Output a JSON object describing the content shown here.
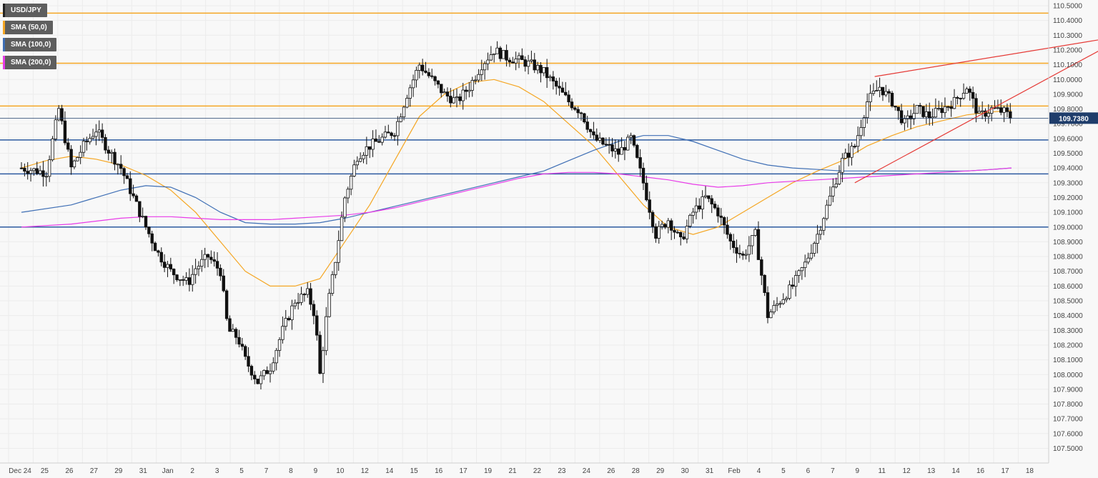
{
  "chart_data": {
    "type": "candlestick",
    "symbol": "USD/JPY",
    "legend": [
      {
        "label": "USD/JPY",
        "color": "#222222"
      },
      {
        "label": "SMA (50,0)",
        "color": "#f5a623"
      },
      {
        "label": "SMA (100,0)",
        "color": "#3f6fb5"
      },
      {
        "label": "SMA (200,0)",
        "color": "#e83be8"
      }
    ],
    "ylim": [
      107.45,
      110.55
    ],
    "y_ticks": [
      "110.5000",
      "110.4000",
      "110.3000",
      "110.2000",
      "110.1000",
      "110.0000",
      "109.9000",
      "109.8000",
      "109.7000",
      "109.6000",
      "109.5000",
      "109.4000",
      "109.3000",
      "109.2000",
      "109.1000",
      "109.0000",
      "108.9000",
      "108.8000",
      "108.7000",
      "108.6000",
      "108.5000",
      "108.4000",
      "108.3000",
      "108.2000",
      "108.1000",
      "108.0000",
      "107.9000",
      "107.8000",
      "107.7000",
      "107.6000",
      "107.5000"
    ],
    "x_ticks": [
      "Dec 24",
      "25",
      "26",
      "27",
      "29",
      "31",
      "Jan",
      "2",
      "3",
      "5",
      "7",
      "8",
      "9",
      "10",
      "12",
      "14",
      "15",
      "16",
      "17",
      "19",
      "21",
      "22",
      "23",
      "24",
      "26",
      "28",
      "29",
      "30",
      "31",
      "Feb",
      "4",
      "5",
      "6",
      "7",
      "9",
      "11",
      "12",
      "13",
      "14",
      "16",
      "17",
      "18"
    ],
    "current_price": "109.7380",
    "current_price_value": 109.738,
    "horizontal_levels": [
      {
        "value": 110.45,
        "color": "#f5a623"
      },
      {
        "value": 110.11,
        "color": "#f5a623"
      },
      {
        "value": 109.82,
        "color": "#f5a623"
      },
      {
        "value": 109.59,
        "color": "#2c5aa0"
      },
      {
        "value": 109.36,
        "color": "#2c5aa0"
      },
      {
        "value": 109.0,
        "color": "#2c5aa0"
      }
    ],
    "trendlines": [
      {
        "from": [
          34.3,
          110.02
        ],
        "to": [
          44.8,
          110.31
        ],
        "color": "#e53935"
      },
      {
        "from": [
          33.5,
          109.3
        ],
        "to": [
          44.8,
          110.33
        ],
        "color": "#e53935"
      }
    ],
    "close_path": [
      [
        0,
        109.4
      ],
      [
        1,
        109.37
      ],
      [
        1.5,
        109.8
      ],
      [
        2,
        109.4
      ],
      [
        2.5,
        109.55
      ],
      [
        3,
        109.66
      ],
      [
        3.5,
        109.52
      ],
      [
        4,
        109.4
      ],
      [
        4.5,
        109.2
      ],
      [
        5,
        109.0
      ],
      [
        5.5,
        108.82
      ],
      [
        6,
        108.7
      ],
      [
        6.7,
        108.62
      ],
      [
        7,
        108.72
      ],
      [
        7.5,
        108.8
      ],
      [
        8,
        108.7
      ],
      [
        8.3,
        108.3
      ],
      [
        8.7,
        108.25
      ],
      [
        9,
        108.1
      ],
      [
        9.5,
        107.95
      ],
      [
        10,
        108.05
      ],
      [
        10.5,
        108.3
      ],
      [
        11,
        108.5
      ],
      [
        11.5,
        108.55
      ],
      [
        11.8,
        108.4
      ],
      [
        12,
        108.0
      ],
      [
        12.3,
        108.45
      ],
      [
        12.6,
        108.75
      ],
      [
        13,
        109.2
      ],
      [
        13.5,
        109.48
      ],
      [
        14,
        109.55
      ],
      [
        14.5,
        109.6
      ],
      [
        15,
        109.65
      ],
      [
        15.5,
        109.9
      ],
      [
        16,
        110.1
      ],
      [
        16.5,
        110.0
      ],
      [
        17,
        109.9
      ],
      [
        17.5,
        109.85
      ],
      [
        18,
        109.95
      ],
      [
        18.5,
        110.1
      ],
      [
        19,
        110.2
      ],
      [
        19.5,
        110.15
      ],
      [
        20,
        110.13
      ],
      [
        20.5,
        110.1
      ],
      [
        21,
        110.05
      ],
      [
        21.5,
        109.95
      ],
      [
        22,
        109.85
      ],
      [
        22.5,
        109.78
      ],
      [
        23,
        109.6
      ],
      [
        23.5,
        109.55
      ],
      [
        24,
        109.5
      ],
      [
        24.5,
        109.6
      ],
      [
        25,
        109.3
      ],
      [
        25.5,
        108.95
      ],
      [
        26,
        109.05
      ],
      [
        26.5,
        108.9
      ],
      [
        27,
        109.1
      ],
      [
        27.5,
        109.2
      ],
      [
        28,
        109.1
      ],
      [
        28.5,
        108.9
      ],
      [
        29,
        108.8
      ],
      [
        29.5,
        108.95
      ],
      [
        30,
        108.4
      ],
      [
        30.5,
        108.5
      ],
      [
        31,
        108.6
      ],
      [
        31.5,
        108.75
      ],
      [
        32,
        108.95
      ],
      [
        32.5,
        109.2
      ],
      [
        33,
        109.45
      ],
      [
        33.5,
        109.55
      ],
      [
        34,
        109.85
      ],
      [
        34.5,
        109.95
      ],
      [
        35,
        109.85
      ],
      [
        35.5,
        109.7
      ],
      [
        36,
        109.8
      ],
      [
        36.5,
        109.75
      ],
      [
        37,
        109.8
      ],
      [
        37.5,
        109.85
      ],
      [
        38,
        109.95
      ],
      [
        38.5,
        109.75
      ],
      [
        39,
        109.8
      ],
      [
        39.5,
        109.78
      ],
      [
        39.8,
        109.74
      ]
    ],
    "sma50": [
      [
        0,
        109.4
      ],
      [
        1,
        109.45
      ],
      [
        2,
        109.48
      ],
      [
        3,
        109.46
      ],
      [
        4,
        109.42
      ],
      [
        5,
        109.35
      ],
      [
        6,
        109.25
      ],
      [
        7,
        109.1
      ],
      [
        8,
        108.9
      ],
      [
        9,
        108.7
      ],
      [
        10,
        108.6
      ],
      [
        11,
        108.6
      ],
      [
        12,
        108.65
      ],
      [
        13,
        108.9
      ],
      [
        14,
        109.15
      ],
      [
        15,
        109.45
      ],
      [
        16,
        109.75
      ],
      [
        17,
        109.9
      ],
      [
        18,
        109.98
      ],
      [
        19,
        110.0
      ],
      [
        20,
        109.95
      ],
      [
        21,
        109.85
      ],
      [
        22,
        109.7
      ],
      [
        23,
        109.55
      ],
      [
        24,
        109.35
      ],
      [
        25,
        109.15
      ],
      [
        26,
        109.0
      ],
      [
        27,
        108.95
      ],
      [
        28,
        109.0
      ],
      [
        29,
        109.1
      ],
      [
        30,
        109.2
      ],
      [
        31,
        109.3
      ],
      [
        32,
        109.38
      ],
      [
        33,
        109.45
      ],
      [
        34,
        109.55
      ],
      [
        35,
        109.62
      ],
      [
        36,
        109.68
      ],
      [
        37,
        109.72
      ],
      [
        38,
        109.76
      ],
      [
        39,
        109.78
      ],
      [
        39.8,
        109.79
      ]
    ],
    "sma100": [
      [
        0,
        109.1
      ],
      [
        2,
        109.15
      ],
      [
        3,
        109.2
      ],
      [
        4,
        109.25
      ],
      [
        5,
        109.28
      ],
      [
        6,
        109.27
      ],
      [
        7,
        109.2
      ],
      [
        8,
        109.1
      ],
      [
        9,
        109.03
      ],
      [
        10,
        109.02
      ],
      [
        11,
        109.02
      ],
      [
        12,
        109.03
      ],
      [
        13,
        109.06
      ],
      [
        14,
        109.1
      ],
      [
        15,
        109.14
      ],
      [
        16,
        109.18
      ],
      [
        17,
        109.22
      ],
      [
        18,
        109.26
      ],
      [
        19,
        109.3
      ],
      [
        20,
        109.34
      ],
      [
        21,
        109.38
      ],
      [
        22,
        109.45
      ],
      [
        23,
        109.52
      ],
      [
        24,
        109.58
      ],
      [
        25,
        109.62
      ],
      [
        26,
        109.62
      ],
      [
        27,
        109.58
      ],
      [
        28,
        109.52
      ],
      [
        29,
        109.46
      ],
      [
        30,
        109.42
      ],
      [
        31,
        109.4
      ],
      [
        32,
        109.39
      ],
      [
        33,
        109.38
      ],
      [
        34,
        109.38
      ],
      [
        35,
        109.38
      ],
      [
        36,
        109.38
      ],
      [
        37,
        109.38
      ],
      [
        38,
        109.38
      ],
      [
        39,
        109.39
      ],
      [
        39.8,
        109.4
      ]
    ],
    "sma200": [
      [
        0,
        109.0
      ],
      [
        2,
        109.02
      ],
      [
        3,
        109.04
      ],
      [
        4,
        109.06
      ],
      [
        5,
        109.07
      ],
      [
        6,
        109.07
      ],
      [
        7,
        109.06
      ],
      [
        8,
        109.05
      ],
      [
        9,
        109.05
      ],
      [
        10,
        109.05
      ],
      [
        11,
        109.06
      ],
      [
        12,
        109.07
      ],
      [
        13,
        109.08
      ],
      [
        14,
        109.1
      ],
      [
        15,
        109.13
      ],
      [
        16,
        109.17
      ],
      [
        17,
        109.21
      ],
      [
        18,
        109.25
      ],
      [
        19,
        109.29
      ],
      [
        20,
        109.33
      ],
      [
        21,
        109.36
      ],
      [
        22,
        109.37
      ],
      [
        23,
        109.37
      ],
      [
        24,
        109.36
      ],
      [
        25,
        109.34
      ],
      [
        26,
        109.32
      ],
      [
        27,
        109.29
      ],
      [
        28,
        109.27
      ],
      [
        29,
        109.28
      ],
      [
        30,
        109.3
      ],
      [
        31,
        109.31
      ],
      [
        32,
        109.32
      ],
      [
        33,
        109.33
      ],
      [
        34,
        109.34
      ],
      [
        35,
        109.35
      ],
      [
        36,
        109.36
      ],
      [
        37,
        109.37
      ],
      [
        38,
        109.38
      ],
      [
        39,
        109.39
      ],
      [
        39.8,
        109.4
      ]
    ]
  }
}
